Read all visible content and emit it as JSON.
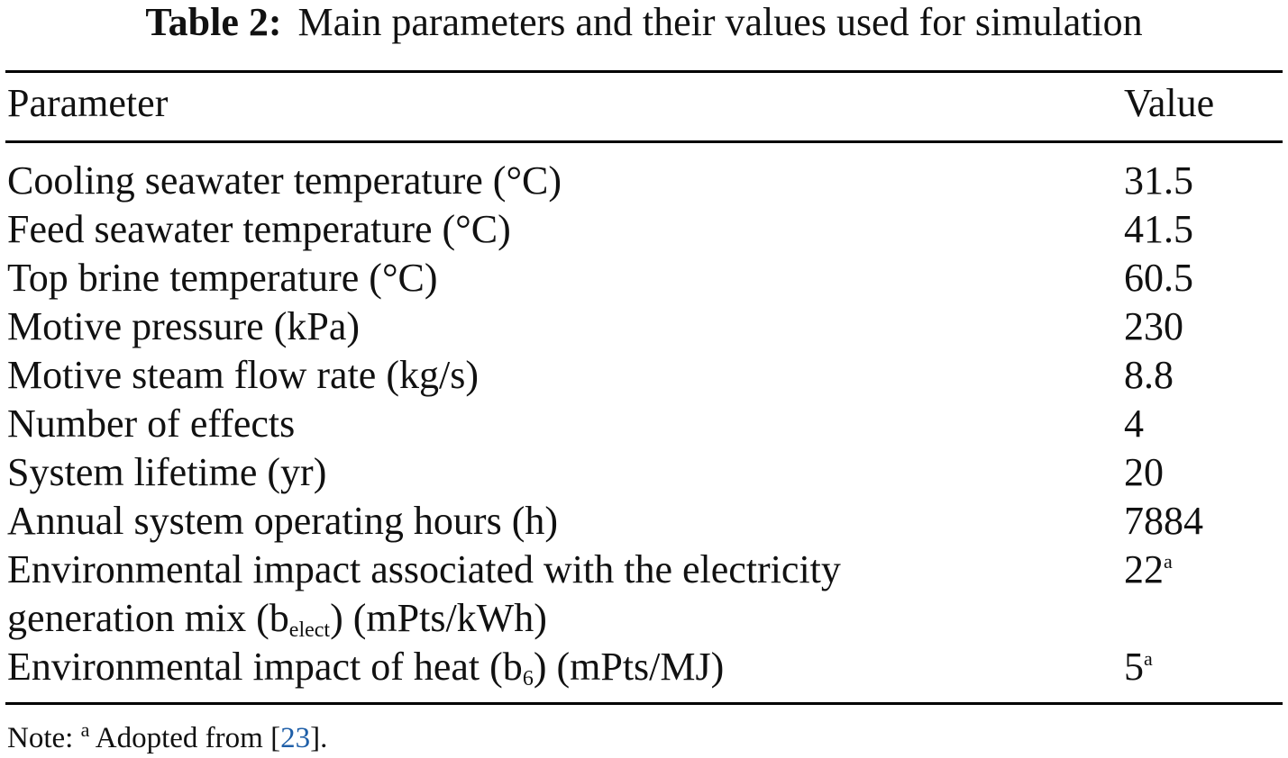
{
  "caption": {
    "label": "Table 2:",
    "text": "Main parameters and their values used for simulation"
  },
  "columns": {
    "parameter": "Parameter",
    "value": "Value"
  },
  "rows": [
    {
      "parameter": "Cooling seawater temperature (°C)",
      "value": "31.5"
    },
    {
      "parameter": "Feed seawater temperature (°C)",
      "value": "41.5"
    },
    {
      "parameter": "Top brine temperature (°C)",
      "value": "60.5"
    },
    {
      "parameter": "Motive pressure (kPa)",
      "value": "230"
    },
    {
      "parameter": "Motive steam flow rate (kg/s)",
      "value": "8.8"
    },
    {
      "parameter": "Number of effects",
      "value": "4"
    },
    {
      "parameter": "System lifetime (yr)",
      "value": "20"
    },
    {
      "parameter": "Annual system operating hours (h)",
      "value": "7884"
    },
    {
      "parameter_line1": "Environmental impact associated with the electricity",
      "parameter_line2_pre": "generation mix (b",
      "parameter_line2_sub": "elect",
      "parameter_line2_post": ") (mPts/kWh)",
      "value": "22",
      "value_sup": "a"
    },
    {
      "parameter_pre": "Environmental impact of heat (b",
      "parameter_sub": "6",
      "parameter_post": ") (mPts/MJ)",
      "value": "5",
      "value_sup": "a"
    }
  ],
  "note": {
    "prefix": "Note:",
    "sup": "a",
    "text_before_ref": "Adopted from [",
    "ref": "23",
    "text_after_ref": "]."
  },
  "colors": {
    "text": "#111111",
    "rule": "#000000",
    "link": "#1f5fa8"
  }
}
